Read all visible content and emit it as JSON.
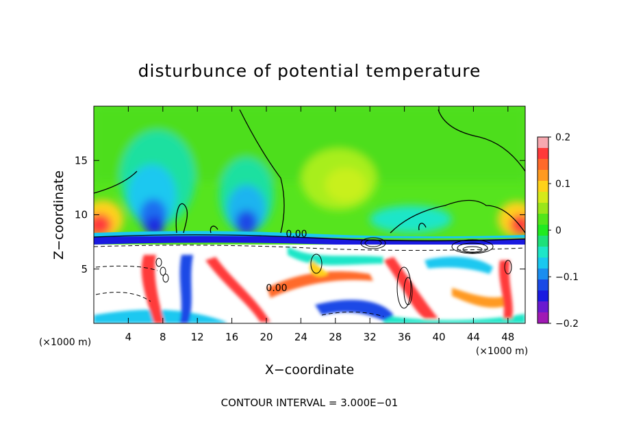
{
  "chart_data": {
    "type": "heatmap",
    "title": "disturbunce of potential temperature",
    "xlabel": "X−coordinate",
    "ylabel": "Z−coordinate",
    "x_unit_left": "(×1000 m)",
    "x_unit_right": "(×1000 m)",
    "footer": "CONTOUR INTERVAL = 3.000E−01",
    "xlim": [
      0,
      50
    ],
    "ylim": [
      0,
      20
    ],
    "x_ticks": [
      4,
      8,
      12,
      16,
      20,
      24,
      28,
      32,
      36,
      40,
      44,
      48
    ],
    "x_tick_labels": [
      "4",
      "8",
      "12",
      "16",
      "20",
      "24",
      "28",
      "32",
      "36",
      "40",
      "44",
      "48"
    ],
    "y_ticks": [
      5,
      10,
      15
    ],
    "y_tick_labels": [
      "5",
      "10",
      "15"
    ],
    "colorbar": {
      "min": -0.2,
      "max": 0.2,
      "ticks": [
        0.2,
        0.1,
        0,
        -0.1,
        -0.2
      ],
      "tick_labels": [
        "0.2",
        "0.1",
        "0",
        "−0.1",
        "−0.2"
      ],
      "colors": [
        "#f7a8b0",
        "#ff3a3a",
        "#ff6a2a",
        "#ff9a20",
        "#ffd21a",
        "#d6ea1a",
        "#9ae61a",
        "#52e61a",
        "#20ea20",
        "#1ee07a",
        "#1ee6c8",
        "#1ac8f0",
        "#1a8ef0",
        "#1a4ae6",
        "#1a1ae0",
        "#6a1ad0",
        "#a01ab4"
      ]
    },
    "contour_labels": [
      "0.00",
      "0.00"
    ],
    "colors": {
      "upper_field": "#54e61e",
      "warm_patch": "#b0f01a",
      "inversion_band": "#1a4ae6",
      "lower_field": "#ffffff"
    }
  }
}
